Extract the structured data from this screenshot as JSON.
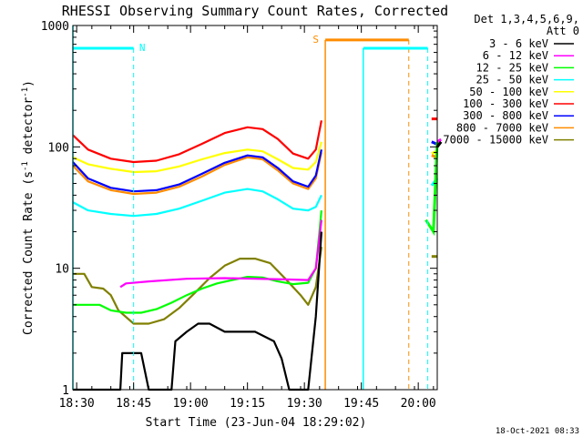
{
  "chart_data": {
    "type": "line",
    "title": "RHESSI Observing Summary Count Rates, Corrected",
    "xlabel": "Start Time (23-Jun-04 18:29:02)",
    "ylabel_main": "Corrected Count Rate (s",
    "ylabel_sup1": "-1",
    "ylabel_mid": " detector",
    "ylabel_sup2": "-1",
    "ylabel_end": ")",
    "y_scale": "log",
    "ylim": [
      1,
      1000
    ],
    "xlim_minutes": [
      0,
      96
    ],
    "x_ticks": [
      {
        "label": "18:30",
        "t": 1
      },
      {
        "label": "18:45",
        "t": 16
      },
      {
        "label": "19:00",
        "t": 31
      },
      {
        "label": "19:15",
        "t": 46
      },
      {
        "label": "19:30",
        "t": 61
      },
      {
        "label": "19:45",
        "t": 76
      },
      {
        "label": "20:00",
        "t": 91
      }
    ],
    "y_ticks": [
      {
        "label": "1",
        "v": 1
      },
      {
        "label": "10",
        "v": 10
      },
      {
        "label": "100",
        "v": 100
      },
      {
        "label": "1000",
        "v": 1000
      }
    ],
    "legend_header": [
      "Det 1,3,4,5,6,9,",
      "Att 0"
    ],
    "legend_position": "right",
    "series": [
      {
        "name": "3 - 6 keV",
        "color": "#000000",
        "points": [
          [
            0,
            1
          ],
          [
            12.5,
            1
          ],
          [
            13,
            2
          ],
          [
            18,
            2
          ],
          [
            20,
            1
          ],
          [
            26,
            1
          ],
          [
            27,
            2.5
          ],
          [
            30,
            3
          ],
          [
            33,
            3.5
          ],
          [
            36,
            3.5
          ],
          [
            40,
            3
          ],
          [
            48,
            3
          ],
          [
            53,
            2.5
          ],
          [
            55,
            1.8
          ],
          [
            57,
            1
          ],
          [
            62,
            1
          ],
          [
            64,
            4
          ],
          [
            65.5,
            20
          ]
        ],
        "late": [
          [
            96,
            100
          ],
          [
            97,
            110
          ]
        ]
      },
      {
        "name": "6 - 12 keV",
        "color": "#ff00ff",
        "points": [
          [
            12.5,
            7
          ],
          [
            14,
            7.5
          ],
          [
            20,
            7.8
          ],
          [
            30,
            8.2
          ],
          [
            40,
            8.3
          ],
          [
            48,
            8.2
          ],
          [
            56,
            8.1
          ],
          [
            62,
            8
          ],
          [
            64,
            10
          ],
          [
            65.5,
            25
          ]
        ],
        "late": [
          [
            96,
            110
          ],
          [
            97,
            115
          ]
        ]
      },
      {
        "name": "12 - 25 keV",
        "color": "#00ff00",
        "points": [
          [
            0,
            5
          ],
          [
            7,
            5
          ],
          [
            10,
            4.5
          ],
          [
            14,
            4.3
          ],
          [
            18,
            4.3
          ],
          [
            22,
            4.6
          ],
          [
            26,
            5.2
          ],
          [
            30,
            6
          ],
          [
            34,
            6.8
          ],
          [
            38,
            7.5
          ],
          [
            42,
            8
          ],
          [
            46,
            8.5
          ],
          [
            50,
            8.4
          ],
          [
            54,
            7.8
          ],
          [
            58,
            7.4
          ],
          [
            62,
            7.6
          ],
          [
            64,
            10
          ],
          [
            65.5,
            30
          ]
        ],
        "late": [
          [
            93,
            25
          ],
          [
            95,
            20
          ],
          [
            96,
            110
          ]
        ]
      },
      {
        "name": "25 - 50 keV",
        "color": "#00ffff",
        "points": [
          [
            0,
            35
          ],
          [
            4,
            30
          ],
          [
            10,
            28
          ],
          [
            16,
            27
          ],
          [
            22,
            28
          ],
          [
            28,
            31
          ],
          [
            34,
            36
          ],
          [
            40,
            42
          ],
          [
            46,
            45
          ],
          [
            50,
            43
          ],
          [
            54,
            37
          ],
          [
            58,
            31
          ],
          [
            62,
            30
          ],
          [
            64,
            32
          ],
          [
            65.5,
            40
          ]
        ],
        "late": [
          [
            94.5,
            48
          ],
          [
            96,
            55
          ]
        ]
      },
      {
        "name": "50 - 100 keV",
        "color": "#ffff00",
        "points": [
          [
            0,
            82
          ],
          [
            4,
            72
          ],
          [
            10,
            66
          ],
          [
            16,
            62
          ],
          [
            22,
            63
          ],
          [
            28,
            69
          ],
          [
            34,
            79
          ],
          [
            40,
            89
          ],
          [
            46,
            95
          ],
          [
            50,
            92
          ],
          [
            54,
            79
          ],
          [
            58,
            67
          ],
          [
            62,
            65
          ],
          [
            64,
            75
          ],
          [
            65.5,
            110
          ]
        ],
        "late": [
          [
            94.5,
            88
          ],
          [
            96,
            92
          ]
        ]
      },
      {
        "name": "100 - 300 keV",
        "color": "#ff0000",
        "points": [
          [
            0,
            125
          ],
          [
            4,
            95
          ],
          [
            10,
            80
          ],
          [
            16,
            75
          ],
          [
            22,
            77
          ],
          [
            28,
            87
          ],
          [
            34,
            106
          ],
          [
            40,
            130
          ],
          [
            46,
            145
          ],
          [
            50,
            140
          ],
          [
            54,
            116
          ],
          [
            58,
            88
          ],
          [
            62,
            80
          ],
          [
            64,
            95
          ],
          [
            65.5,
            165
          ]
        ],
        "late": [
          [
            94.5,
            170
          ],
          [
            96,
            170
          ]
        ]
      },
      {
        "name": "300 - 800 keV",
        "color": "#0000ff",
        "points": [
          [
            0,
            75
          ],
          [
            4,
            55
          ],
          [
            10,
            46
          ],
          [
            16,
            43
          ],
          [
            22,
            44
          ],
          [
            28,
            49
          ],
          [
            34,
            60
          ],
          [
            40,
            74
          ],
          [
            46,
            85
          ],
          [
            50,
            82
          ],
          [
            54,
            67
          ],
          [
            58,
            52
          ],
          [
            62,
            47
          ],
          [
            64,
            58
          ],
          [
            65.5,
            95
          ]
        ],
        "late": [
          [
            94.5,
            110
          ],
          [
            96,
            105
          ]
        ]
      },
      {
        "name": "800 - 7000 keV",
        "color": "#ff8c00",
        "points": [
          [
            0,
            70
          ],
          [
            4,
            52
          ],
          [
            10,
            44
          ],
          [
            16,
            41
          ],
          [
            22,
            42
          ],
          [
            28,
            47
          ],
          [
            34,
            57
          ],
          [
            40,
            71
          ],
          [
            46,
            82
          ],
          [
            50,
            79
          ],
          [
            54,
            64
          ],
          [
            58,
            50
          ],
          [
            62,
            45
          ],
          [
            64,
            55
          ],
          [
            65.5,
            90
          ]
        ],
        "late": [
          [
            94.5,
            85
          ],
          [
            96,
            82
          ]
        ]
      },
      {
        "name": "7000 - 15000 keV",
        "color": "#808000",
        "points": [
          [
            0,
            9
          ],
          [
            3,
            9
          ],
          [
            5,
            7
          ],
          [
            8,
            6.8
          ],
          [
            10,
            6
          ],
          [
            12,
            4.5
          ],
          [
            16,
            3.5
          ],
          [
            20,
            3.5
          ],
          [
            24,
            3.8
          ],
          [
            28,
            4.7
          ],
          [
            32,
            6.2
          ],
          [
            36,
            8.3
          ],
          [
            40,
            10.5
          ],
          [
            44,
            12
          ],
          [
            48,
            12
          ],
          [
            52,
            11
          ],
          [
            56,
            8.2
          ],
          [
            60,
            6
          ],
          [
            62,
            5
          ],
          [
            64,
            7
          ],
          [
            65.5,
            15
          ]
        ],
        "late": [
          [
            94.5,
            12.5
          ],
          [
            96,
            12.5
          ]
        ]
      }
    ],
    "annotations": {
      "n_label": "N",
      "s_label": "S",
      "footer": "18-Oct-2021 08:33"
    }
  }
}
